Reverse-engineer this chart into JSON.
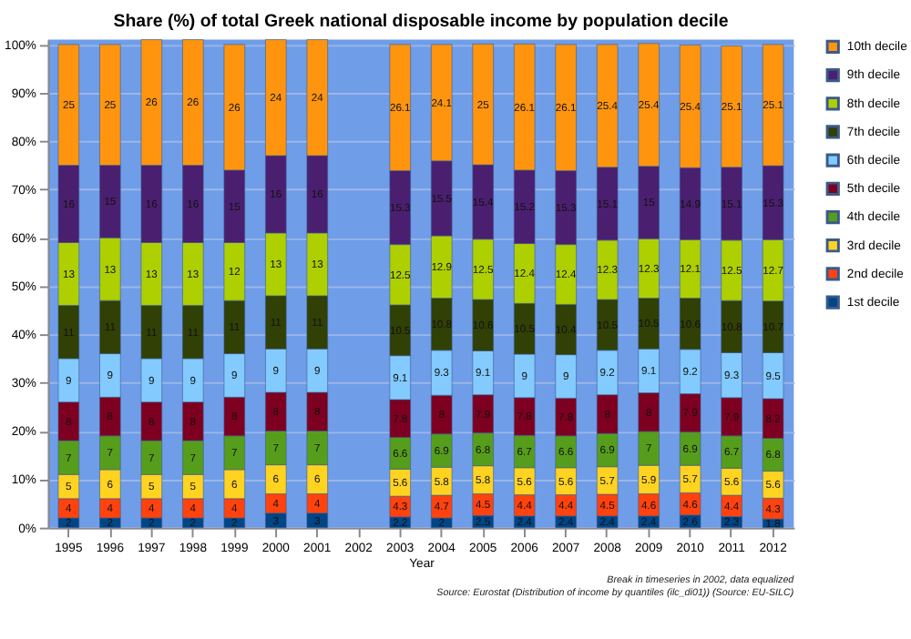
{
  "chart_data": {
    "type": "bar",
    "stacked": true,
    "title": "Share (%) of total Greek national disposable income by population decile",
    "xlabel": "Year",
    "categories": [
      "1995",
      "1996",
      "1997",
      "1998",
      "1999",
      "2000",
      "2001",
      "2002",
      "2003",
      "2004",
      "2005",
      "2006",
      "2007",
      "2008",
      "2009",
      "2010",
      "2011",
      "2012"
    ],
    "series": [
      {
        "name": "1st decile",
        "color": "#004586",
        "values": [
          2,
          2,
          2,
          2,
          2,
          3,
          3,
          null,
          2.2,
          2,
          2.5,
          2.4,
          2.4,
          2.4,
          2.4,
          2.6,
          2.3,
          1.8
        ]
      },
      {
        "name": "2nd decile",
        "color": "#ff420e",
        "values": [
          4,
          4,
          4,
          4,
          4,
          4,
          4,
          null,
          4.3,
          4.7,
          4.5,
          4.4,
          4.4,
          4.5,
          4.6,
          4.6,
          4.4,
          4.3
        ]
      },
      {
        "name": "3rd decile",
        "color": "#ffd320",
        "values": [
          5,
          6,
          5,
          5,
          6,
          6,
          6,
          null,
          5.6,
          5.8,
          5.8,
          5.6,
          5.6,
          5.7,
          5.9,
          5.7,
          5.6,
          5.6
        ]
      },
      {
        "name": "4th decile",
        "color": "#579d1c",
        "values": [
          7,
          7,
          7,
          7,
          7,
          7,
          7,
          null,
          6.6,
          6.9,
          6.8,
          6.7,
          6.6,
          6.9,
          7,
          6.9,
          6.7,
          6.8
        ]
      },
      {
        "name": "5th decile",
        "color": "#7e0021",
        "values": [
          8,
          8,
          8,
          8,
          8,
          8,
          8,
          null,
          7.8,
          8,
          7.9,
          7.8,
          7.8,
          8,
          8,
          7.9,
          7.9,
          8.2
        ]
      },
      {
        "name": "6th decile",
        "color": "#83caff",
        "values": [
          9,
          9,
          9,
          9,
          9,
          9,
          9,
          null,
          9.1,
          9.3,
          9.1,
          9,
          9,
          9.2,
          9.1,
          9.2,
          9.3,
          9.5
        ]
      },
      {
        "name": "7th decile",
        "color": "#314004",
        "values": [
          11,
          11,
          11,
          11,
          11,
          11,
          11,
          null,
          10.5,
          10.8,
          10.6,
          10.5,
          10.4,
          10.5,
          10.5,
          10.6,
          10.8,
          10.7
        ]
      },
      {
        "name": "8th decile",
        "color": "#aecf00",
        "values": [
          13,
          13,
          13,
          13,
          12,
          13,
          13,
          null,
          12.5,
          12.9,
          12.5,
          12.4,
          12.4,
          12.3,
          12.3,
          12.1,
          12.5,
          12.7
        ]
      },
      {
        "name": "9th decile",
        "color": "#4b1f6f",
        "values": [
          16,
          15,
          16,
          16,
          15,
          16,
          16,
          null,
          15.3,
          15.5,
          15.4,
          15.2,
          15.3,
          15.1,
          15,
          14.9,
          15.1,
          15.3
        ]
      },
      {
        "name": "10th decile",
        "color": "#ff950e",
        "values": [
          25,
          25,
          26,
          26,
          26,
          24,
          24,
          null,
          26.1,
          24.1,
          25,
          26.1,
          26.1,
          25.4,
          25.4,
          25.4,
          25.1,
          25.1
        ]
      }
    ],
    "ylim": [
      0,
      101
    ],
    "yticks": [
      {
        "value": 0,
        "label": "0%"
      },
      {
        "value": 10,
        "label": "10%"
      },
      {
        "value": 20,
        "label": "20%"
      },
      {
        "value": 30,
        "label": "30%"
      },
      {
        "value": 40,
        "label": "40%"
      },
      {
        "value": 50,
        "label": "50%"
      },
      {
        "value": 60,
        "label": "60%"
      },
      {
        "value": 70,
        "label": "70%"
      },
      {
        "value": 80,
        "label": "80%"
      },
      {
        "value": 90,
        "label": "90%"
      },
      {
        "value": 100,
        "label": "100%"
      }
    ],
    "grid": "y",
    "legend": "right",
    "data_labels": true,
    "annotations": [
      "Break in timeseries in 2002, data equalized",
      "Source: Eurostat (Distribution of income by quantiles (ilc_di01)) (Source: EU-SILC)"
    ]
  }
}
